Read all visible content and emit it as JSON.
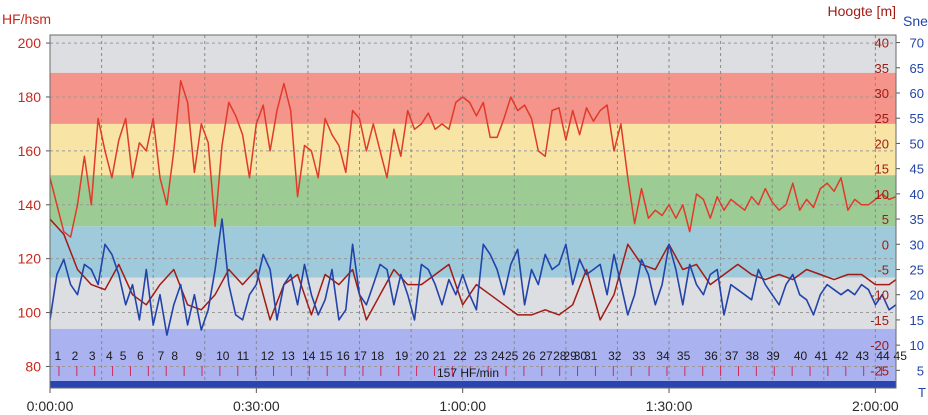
{
  "chart_data": {
    "type": "line",
    "left_axis": {
      "label": "HF/hsm",
      "ticks": [
        80,
        100,
        120,
        140,
        160,
        180,
        200
      ],
      "range": [
        72,
        203
      ]
    },
    "right_axis_altitude": {
      "label": "Hoogte [m]",
      "ticks": [
        -25,
        -20,
        -15,
        -10,
        -5,
        0,
        5,
        10,
        15,
        20,
        25,
        30,
        35,
        40
      ],
      "range": [
        -28.5,
        41.5
      ]
    },
    "right_axis_speed": {
      "label": "Sne",
      "ticks": [
        5,
        10,
        15,
        20,
        25,
        30,
        35,
        40,
        45,
        50,
        55,
        60,
        65,
        70
      ],
      "range": [
        1.5,
        71.5
      ]
    },
    "x_axis": {
      "ticks": [
        "0:00:00",
        "0:30:00",
        "1:00:00",
        "1:30:00",
        "2:00:00"
      ],
      "range_min": [
        0,
        123
      ],
      "right_label": "T"
    },
    "zones": [
      {
        "from": 72,
        "to": 94,
        "color": "#aab2f0"
      },
      {
        "from": 94,
        "to": 113,
        "color": "#dcdee2"
      },
      {
        "from": 113,
        "to": 132,
        "color": "#9ecadb"
      },
      {
        "from": 132,
        "to": 151,
        "color": "#9ccc94"
      },
      {
        "from": 151,
        "to": 170,
        "color": "#f8e4a4"
      },
      {
        "from": 170,
        "to": 189,
        "color": "#f5948a"
      },
      {
        "from": 189,
        "to": 203,
        "color": "#dcdee2"
      }
    ],
    "laps": [
      "1",
      "2",
      "3",
      "4",
      "5",
      "6",
      "7",
      "8",
      "9",
      "10",
      "11",
      "12",
      "13",
      "14",
      "15",
      "16",
      "17",
      "18",
      "19",
      "20",
      "21",
      "22",
      "23",
      "24",
      "25",
      "26",
      "27",
      "28",
      "29",
      "30",
      "31",
      "32",
      "33",
      "34",
      "35",
      "36",
      "37",
      "38",
      "39",
      "40",
      "41",
      "42",
      "43",
      "44",
      "45"
    ],
    "lap_start_minutes": [
      0.5,
      3,
      5.5,
      8,
      10,
      12.5,
      15.5,
      17.5,
      21,
      24,
      27,
      30.5,
      33.5,
      36.5,
      39,
      41.5,
      44,
      46.5,
      50,
      53,
      55.5,
      58.5,
      61.5,
      64,
      66,
      68.5,
      71,
      73,
      74.5,
      76,
      77.5,
      81,
      84.5,
      88,
      91,
      95,
      98,
      101,
      104,
      108,
      111,
      114,
      117,
      120,
      122.5
    ],
    "footer_label": "157 HF/min",
    "series": [
      {
        "name": "HF",
        "color": "#e03a2a",
        "axis": "left",
        "x": [
          0,
          2,
          3,
          4,
          5,
          6,
          7,
          8,
          9,
          10,
          11,
          12,
          13,
          14,
          15,
          16,
          17,
          18,
          19,
          20,
          21,
          22,
          23,
          24,
          25,
          26,
          27,
          28,
          29,
          30,
          31,
          32,
          33,
          34,
          35,
          36,
          37,
          38,
          39,
          40,
          41,
          42,
          43,
          44,
          45,
          46,
          47,
          48,
          49,
          50,
          51,
          52,
          53,
          54,
          55,
          56,
          57,
          58,
          59,
          60,
          61,
          62,
          63,
          64,
          65,
          66,
          67,
          68,
          69,
          70,
          71,
          72,
          73,
          74,
          75,
          76,
          77,
          78,
          79,
          80,
          81,
          82,
          83,
          84,
          85,
          86,
          87,
          88,
          89,
          90,
          91,
          92,
          93,
          94,
          95,
          96,
          97,
          98,
          99,
          100,
          101,
          102,
          103,
          104,
          105,
          106,
          107,
          108,
          109,
          110,
          111,
          112,
          113,
          114,
          115,
          116,
          117,
          118,
          119,
          120,
          121,
          122,
          123
        ],
        "values": [
          150,
          130,
          128,
          140,
          158,
          140,
          172,
          160,
          150,
          164,
          172,
          150,
          163,
          160,
          172,
          150,
          140,
          160,
          186,
          178,
          152,
          170,
          163,
          132,
          162,
          178,
          173,
          166,
          150,
          170,
          177,
          160,
          175,
          185,
          175,
          143,
          162,
          160,
          150,
          172,
          166,
          162,
          152,
          175,
          172,
          160,
          170,
          160,
          150,
          168,
          158,
          175,
          168,
          170,
          174,
          168,
          170,
          168,
          178,
          180,
          178,
          173,
          178,
          165,
          165,
          172,
          180,
          175,
          177,
          172,
          160,
          158,
          175,
          176,
          164,
          175,
          166,
          176,
          171,
          175,
          177,
          160,
          170,
          150,
          133,
          146,
          135,
          138,
          136,
          140,
          135,
          140,
          130,
          144,
          142,
          135,
          143,
          138,
          142,
          140,
          138,
          143,
          140,
          146,
          141,
          138,
          140,
          148,
          138,
          142,
          139,
          146,
          148,
          145,
          150,
          138,
          142,
          140,
          140,
          142,
          144,
          142,
          143
        ]
      },
      {
        "name": "Hoogte",
        "color": "#a01c14",
        "axis": "right_altitude",
        "x": [
          0,
          2,
          4,
          6,
          8,
          10,
          12,
          14,
          16,
          18,
          20,
          22,
          24,
          26,
          28,
          30,
          32,
          34,
          36,
          38,
          40,
          42,
          44,
          46,
          48,
          50,
          52,
          54,
          56,
          58,
          60,
          62,
          64,
          66,
          68,
          70,
          72,
          74,
          76,
          78,
          80,
          82,
          84,
          86,
          88,
          90,
          92,
          94,
          96,
          98,
          100,
          102,
          104,
          106,
          108,
          110,
          112,
          114,
          116,
          118,
          120,
          122,
          123
        ],
        "values": [
          5,
          2,
          -5,
          -8,
          -9,
          -4,
          -10,
          -12,
          -8,
          -5,
          -12,
          -13,
          -10,
          -5,
          -8,
          -5,
          -15,
          -8,
          -6,
          -14,
          -6,
          -8,
          -5,
          -15,
          -10,
          -5,
          -8,
          -8,
          -6,
          -4,
          -12,
          -8,
          -10,
          -12,
          -14,
          -14,
          -13,
          -14,
          -12,
          -5,
          -15,
          -10,
          0,
          -4,
          -5,
          0,
          -5,
          -4,
          -8,
          -6,
          -4,
          -6,
          -7,
          -6,
          -7,
          -5,
          -6,
          -7,
          -6,
          -6,
          -8,
          -8,
          -7
        ]
      },
      {
        "name": "Snelheid",
        "color": "#2244aa",
        "axis": "right_speed",
        "x": [
          0,
          1,
          2,
          3,
          4,
          5,
          6,
          7,
          8,
          9,
          10,
          11,
          12,
          13,
          14,
          15,
          16,
          17,
          18,
          19,
          20,
          21,
          22,
          23,
          24,
          25,
          26,
          27,
          28,
          29,
          30,
          31,
          32,
          33,
          34,
          35,
          36,
          37,
          38,
          39,
          40,
          41,
          42,
          43,
          44,
          45,
          46,
          47,
          48,
          49,
          50,
          51,
          52,
          53,
          54,
          55,
          56,
          57,
          58,
          59,
          60,
          61,
          62,
          63,
          64,
          65,
          66,
          67,
          68,
          69,
          70,
          71,
          72,
          73,
          74,
          75,
          76,
          77,
          78,
          79,
          80,
          81,
          82,
          83,
          84,
          85,
          86,
          87,
          88,
          89,
          90,
          91,
          92,
          93,
          94,
          95,
          96,
          97,
          98,
          99,
          100,
          101,
          102,
          103,
          104,
          105,
          106,
          107,
          108,
          109,
          110,
          111,
          112,
          113,
          114,
          115,
          116,
          117,
          118,
          119,
          120,
          121,
          122,
          123
        ],
        "values": [
          15,
          24,
          27,
          22,
          20,
          26,
          25,
          22,
          30,
          28,
          24,
          18,
          22,
          15,
          25,
          14,
          20,
          12,
          18,
          22,
          14,
          20,
          13,
          17,
          25,
          35,
          22,
          16,
          15,
          20,
          22,
          28,
          25,
          15,
          22,
          24,
          18,
          26,
          20,
          16,
          19,
          25,
          15,
          17,
          30,
          20,
          18,
          22,
          26,
          25,
          18,
          24,
          20,
          15,
          26,
          25,
          22,
          18,
          23,
          20,
          24,
          20,
          17,
          30,
          28,
          25,
          20,
          26,
          29,
          18,
          25,
          22,
          28,
          25,
          26,
          30,
          22,
          27,
          24,
          25,
          26,
          20,
          28,
          22,
          16,
          20,
          27,
          24,
          18,
          22,
          30,
          25,
          18,
          26,
          22,
          20,
          24,
          25,
          16,
          22,
          21,
          20,
          19,
          25,
          22,
          20,
          18,
          22,
          24,
          20,
          19,
          16,
          20,
          22,
          21,
          20,
          21,
          20,
          22,
          21,
          18,
          20,
          17,
          18
        ]
      }
    ]
  }
}
